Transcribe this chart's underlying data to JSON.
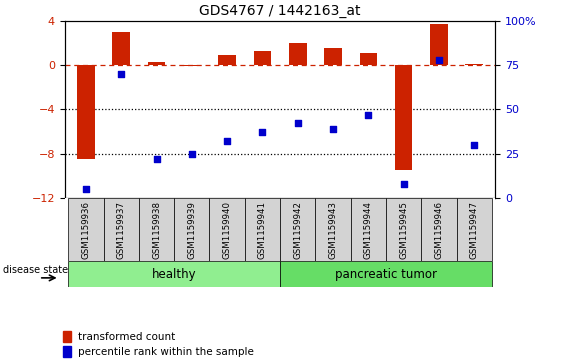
{
  "title": "GDS4767 / 1442163_at",
  "samples": [
    "GSM1159936",
    "GSM1159937",
    "GSM1159938",
    "GSM1159939",
    "GSM1159940",
    "GSM1159941",
    "GSM1159942",
    "GSM1159943",
    "GSM1159944",
    "GSM1159945",
    "GSM1159946",
    "GSM1159947"
  ],
  "transformed_count": [
    -8.5,
    3.0,
    0.3,
    -0.1,
    0.9,
    1.3,
    2.0,
    1.5,
    1.1,
    -9.5,
    3.7,
    0.1
  ],
  "percentile_rank": [
    5,
    70,
    22,
    25,
    32,
    37,
    42,
    39,
    47,
    8,
    78,
    30
  ],
  "ylim_left": [
    -12,
    4
  ],
  "ylim_right": [
    0,
    100
  ],
  "yticks_left": [
    -12,
    -8,
    -4,
    0,
    4
  ],
  "yticks_right": [
    0,
    25,
    50,
    75,
    100
  ],
  "dotted_lines": [
    -4,
    -8
  ],
  "bar_color": "#cc2200",
  "dot_color": "#0000cc",
  "healthy_label": "healthy",
  "tumor_label": "pancreatic tumor",
  "healthy_color": "#90ee90",
  "tumor_color": "#66dd66",
  "disease_state_label": "disease state",
  "legend1": "transformed count",
  "legend2": "percentile rank within the sample",
  "bg_color": "#ffffff",
  "label_box_color": "#d3d3d3"
}
